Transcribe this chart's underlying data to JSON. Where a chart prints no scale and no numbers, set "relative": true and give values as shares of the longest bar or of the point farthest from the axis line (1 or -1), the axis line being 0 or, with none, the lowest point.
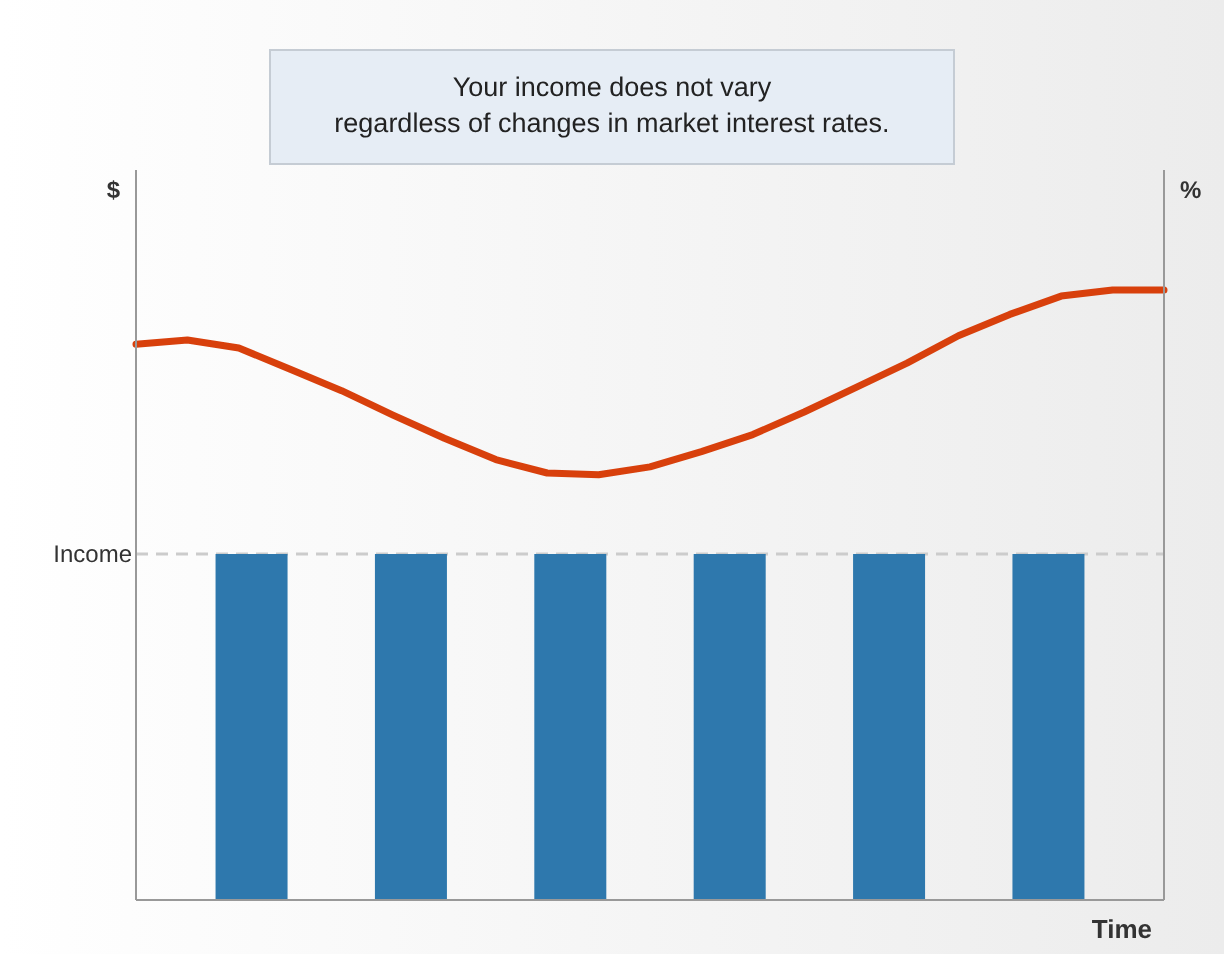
{
  "chart_data": [
    {
      "type": "bar",
      "relative": true,
      "categories": [
        null,
        null,
        null,
        null,
        null,
        null
      ],
      "series": [
        {
          "color": "#2e78ad",
          "values": [
            1,
            1,
            1,
            1,
            1,
            1
          ]
        }
      ],
      "xlabel": "Time",
      "ref_lines": [
        {
          "axis": "y",
          "value": 1,
          "label": "Income",
          "color": "#cccccc",
          "line_style": "dashed"
        }
      ],
      "annotations": [
        "Your income does not vary\nregardless of changes in market interest rates."
      ]
    },
    {
      "type": "line",
      "relative": true,
      "categories": [
        null,
        null,
        null,
        null,
        null,
        null,
        null,
        null,
        null,
        null,
        null,
        null,
        null,
        null,
        null,
        null,
        null,
        null,
        null,
        null,
        null
      ],
      "series": [
        {
          "color": "#d8400c",
          "values": [
            0.911,
            0.918,
            0.905,
            0.87,
            0.835,
            0.795,
            0.757,
            0.722,
            0.7,
            0.697,
            0.71,
            0.735,
            0.763,
            0.8,
            0.84,
            0.88,
            0.925,
            0.96,
            0.99,
            1,
            1
          ]
        }
      ],
      "ylabel": "$",
      "y2label": "%"
    }
  ]
}
